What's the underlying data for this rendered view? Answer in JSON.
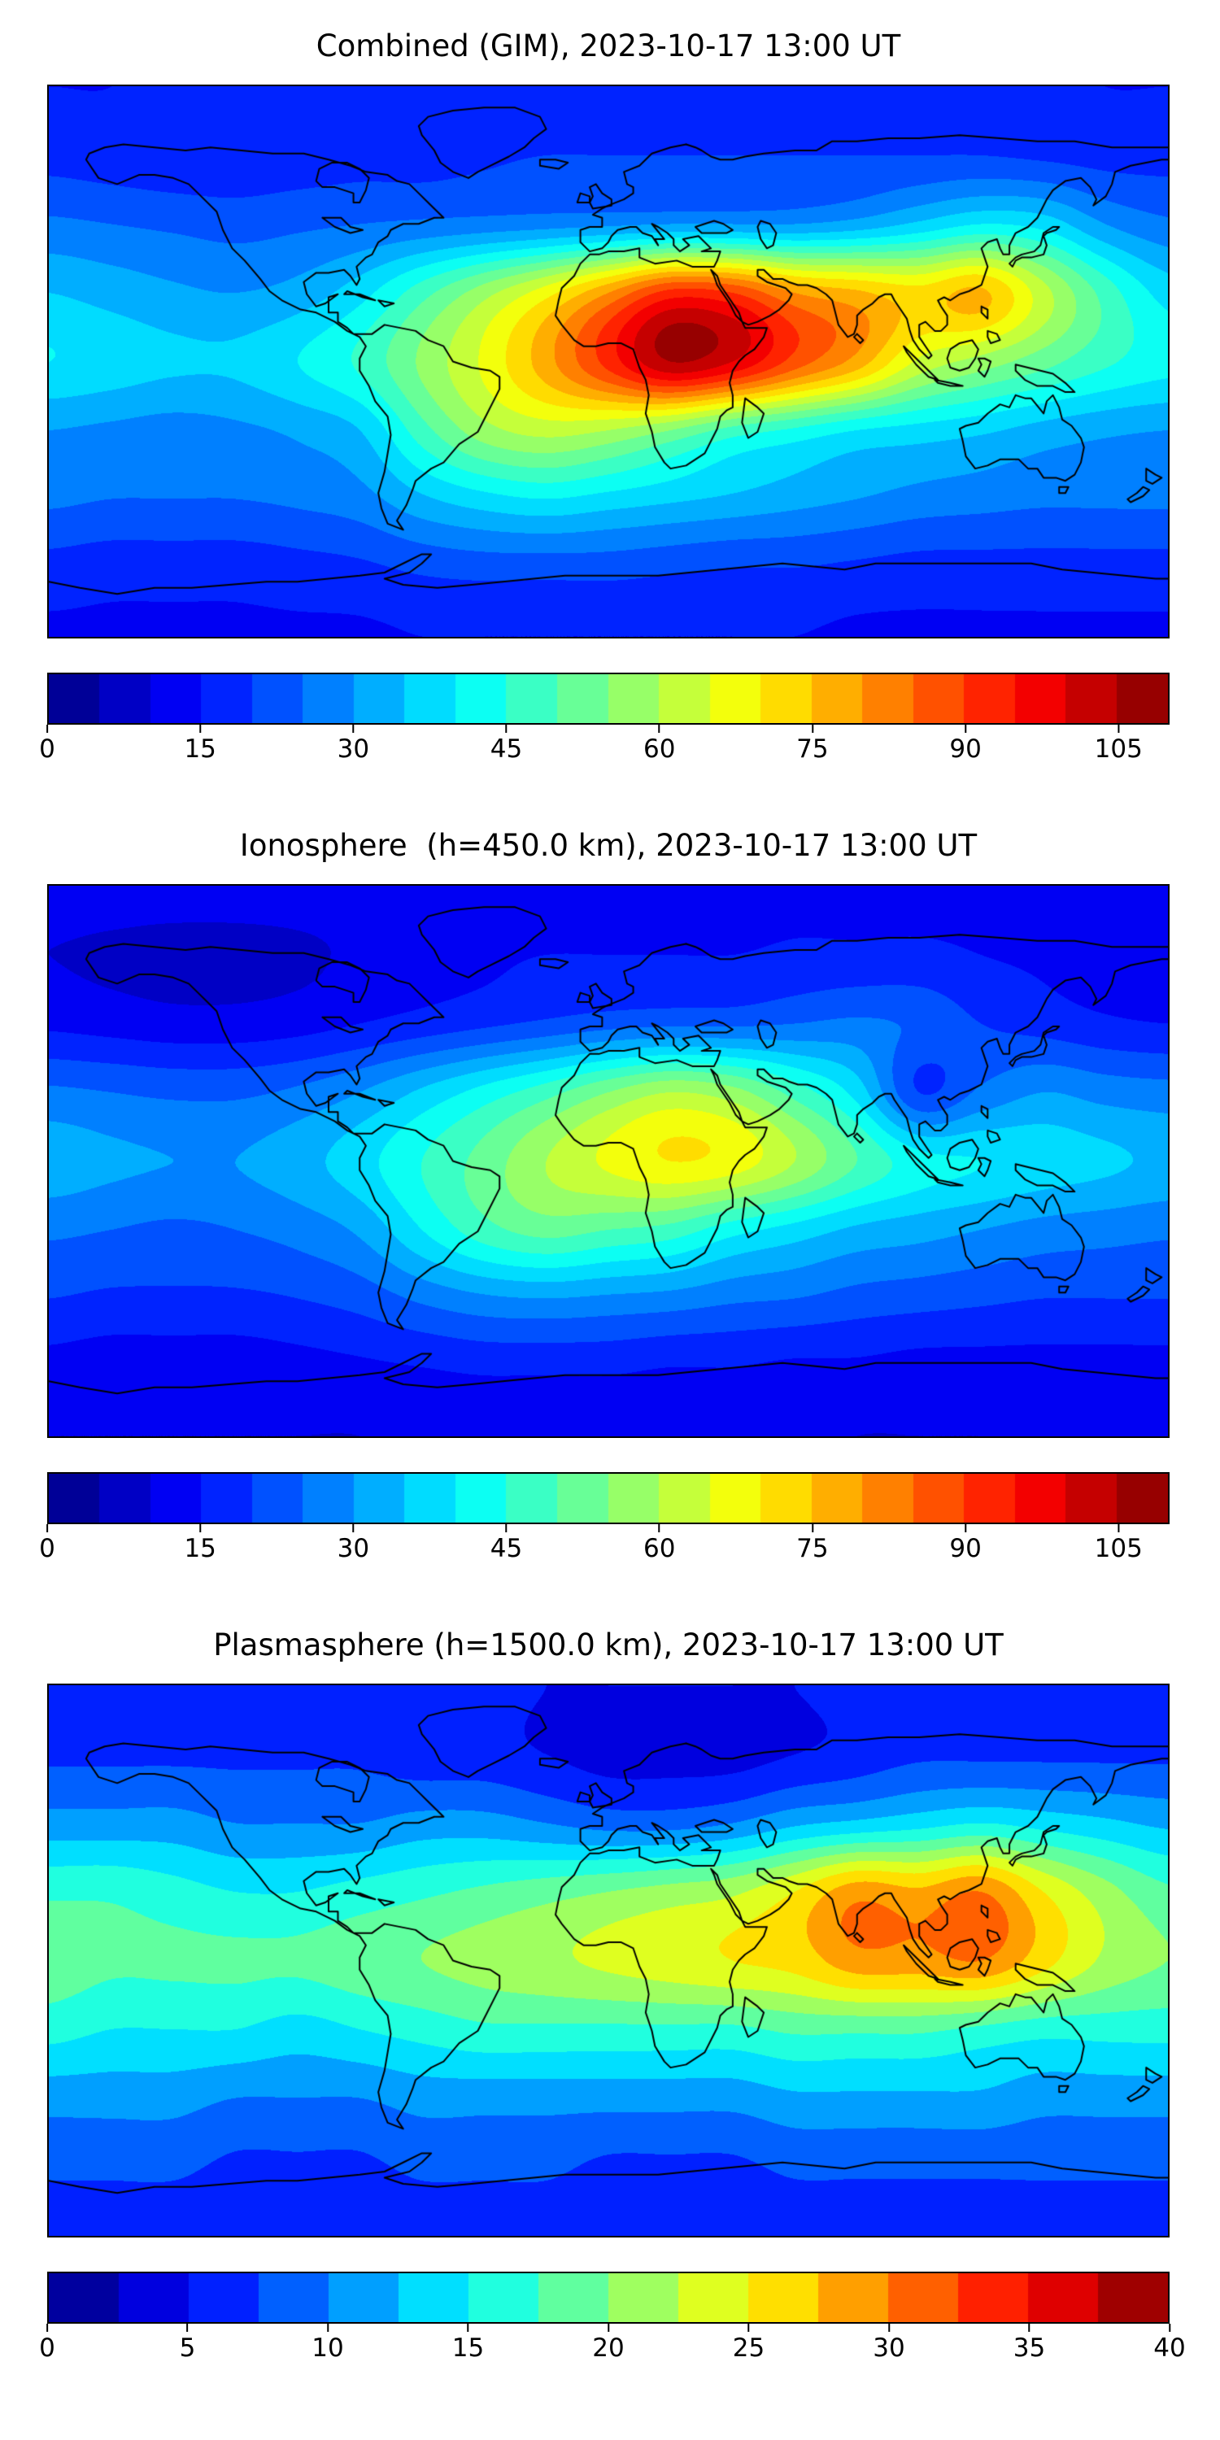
{
  "figure": {
    "background": "#ffffff",
    "text_color": "#000000",
    "colormap": "jet"
  },
  "panels": [
    {
      "title": "Combined (GIM), 2023-10-17 13:00 UT"
    },
    {
      "title": "Ionosphere  (h=450.0 km), 2023-10-17 13:00 UT"
    },
    {
      "title": "Plasmasphere (h=1500.0 km), 2023-10-17 13:00 UT"
    }
  ],
  "chart_data": [
    {
      "type": "heatmap",
      "title": "Combined (GIM), 2023-10-17 13:00 UT",
      "projection": "equirectangular world map with coastlines",
      "xlim": [
        -180,
        180
      ],
      "ylim": [
        -90,
        90
      ],
      "colormap": "jet",
      "levels": {
        "min": 0,
        "max": 110,
        "step": 5
      },
      "colorbar_ticks": [
        0,
        15,
        30,
        45,
        60,
        75,
        90,
        105
      ],
      "lon": [
        -180,
        -160,
        -140,
        -120,
        -100,
        -80,
        -60,
        -40,
        -20,
        0,
        20,
        40,
        60,
        80,
        100,
        120,
        140,
        160,
        180
      ],
      "lat": [
        90,
        67.5,
        45,
        22.5,
        0,
        -22.5,
        -45,
        -67.5,
        -90
      ],
      "values": [
        [
          15,
          15,
          16,
          16,
          17,
          17,
          17,
          16,
          16,
          16,
          16,
          16,
          17,
          17,
          17,
          16,
          16,
          15,
          15
        ],
        [
          18,
          17,
          16,
          16,
          17,
          18,
          18,
          19,
          20,
          20,
          20,
          20,
          20,
          20,
          20,
          20,
          19,
          18,
          18
        ],
        [
          26,
          25,
          24,
          23,
          24,
          25,
          26,
          27,
          28,
          29,
          30,
          30,
          30,
          32,
          36,
          40,
          38,
          30,
          26
        ],
        [
          35,
          33,
          31,
          30,
          32,
          38,
          48,
          58,
          68,
          80,
          92,
          90,
          80,
          76,
          72,
          76,
          62,
          48,
          38
        ],
        [
          40,
          38,
          36,
          36,
          40,
          46,
          56,
          66,
          78,
          92,
          105,
          100,
          88,
          78,
          64,
          58,
          52,
          46,
          42
        ],
        [
          30,
          29,
          28,
          29,
          31,
          35,
          48,
          58,
          62,
          60,
          55,
          48,
          44,
          40,
          38,
          36,
          33,
          31,
          30
        ],
        [
          26,
          25,
          25,
          25,
          26,
          28,
          34,
          38,
          40,
          38,
          36,
          34,
          32,
          30,
          28,
          27,
          26,
          26,
          26
        ],
        [
          18,
          17,
          17,
          17,
          18,
          19,
          21,
          22,
          22,
          22,
          21,
          20,
          20,
          19,
          18,
          18,
          18,
          18,
          18
        ],
        [
          14,
          14,
          14,
          14,
          14,
          14,
          15,
          15,
          15,
          15,
          15,
          15,
          15,
          14,
          14,
          14,
          14,
          14,
          14
        ]
      ]
    },
    {
      "type": "heatmap",
      "title": "Ionosphere  (h=450.0 km), 2023-10-17 13:00 UT",
      "projection": "equirectangular world map with coastlines",
      "xlim": [
        -180,
        180
      ],
      "ylim": [
        -90,
        90
      ],
      "colormap": "jet",
      "levels": {
        "min": 0,
        "max": 110,
        "step": 5
      },
      "colorbar_ticks": [
        0,
        15,
        30,
        45,
        60,
        75,
        90,
        105
      ],
      "lon": [
        -180,
        -160,
        -140,
        -120,
        -100,
        -80,
        -60,
        -40,
        -20,
        0,
        20,
        40,
        60,
        80,
        100,
        120,
        140,
        160,
        180
      ],
      "lat": [
        90,
        67.5,
        45,
        22.5,
        0,
        -22.5,
        -45,
        -67.5,
        -90
      ],
      "values": [
        [
          13,
          13,
          13,
          13,
          13,
          13,
          13,
          13,
          13,
          14,
          14,
          14,
          14,
          14,
          14,
          14,
          13,
          13,
          13
        ],
        [
          10,
          9,
          8,
          8,
          9,
          11,
          13,
          14,
          15,
          15,
          15,
          15,
          16,
          16,
          16,
          15,
          14,
          12,
          11
        ],
        [
          14,
          13,
          12,
          12,
          13,
          15,
          17,
          19,
          21,
          23,
          24,
          24,
          25,
          26,
          24,
          20,
          18,
          16,
          15
        ],
        [
          26,
          25,
          24,
          24,
          26,
          30,
          36,
          42,
          48,
          55,
          60,
          57,
          48,
          38,
          20,
          26,
          30,
          28,
          27
        ],
        [
          33,
          31,
          30,
          30,
          33,
          38,
          45,
          52,
          60,
          66,
          70,
          68,
          60,
          50,
          42,
          40,
          38,
          36,
          34
        ],
        [
          26,
          25,
          24,
          25,
          27,
          31,
          40,
          48,
          52,
          50,
          48,
          42,
          38,
          34,
          32,
          30,
          28,
          27,
          26
        ],
        [
          20,
          19,
          19,
          19,
          20,
          22,
          26,
          29,
          30,
          29,
          28,
          26,
          25,
          23,
          22,
          21,
          20,
          20,
          20
        ],
        [
          13,
          12,
          12,
          12,
          13,
          14,
          15,
          16,
          16,
          16,
          15,
          15,
          14,
          14,
          13,
          13,
          13,
          13,
          13
        ],
        [
          10,
          10,
          10,
          10,
          10,
          10,
          11,
          11,
          11,
          11,
          11,
          11,
          11,
          10,
          10,
          10,
          10,
          10,
          10
        ]
      ]
    },
    {
      "type": "heatmap",
      "title": "Plasmasphere (h=1500.0 km), 2023-10-17 13:00 UT",
      "projection": "equirectangular world map with coastlines",
      "xlim": [
        -180,
        180
      ],
      "ylim": [
        -90,
        90
      ],
      "colormap": "jet",
      "levels": {
        "min": 0,
        "max": 40,
        "step": 2.5
      },
      "colorbar_ticks": [
        0,
        5,
        10,
        15,
        20,
        25,
        30,
        35,
        40
      ],
      "lon": [
        -180,
        -160,
        -140,
        -120,
        -100,
        -80,
        -60,
        -40,
        -20,
        0,
        20,
        40,
        60,
        80,
        100,
        120,
        140,
        160,
        180
      ],
      "lat": [
        90,
        67.5,
        45,
        22.5,
        0,
        -22.5,
        -45,
        -67.5,
        -90
      ],
      "values": [
        [
          6,
          6,
          6,
          6,
          6,
          6,
          6,
          6,
          5,
          5,
          5,
          5,
          5,
          6,
          6,
          6,
          6,
          6,
          6
        ],
        [
          7,
          7,
          7,
          7,
          7,
          7,
          6,
          6,
          5,
          4,
          4,
          4,
          5,
          6,
          7,
          7,
          7,
          7,
          7
        ],
        [
          11,
          11,
          11,
          10,
          10,
          10,
          11,
          11,
          10,
          9,
          9,
          10,
          12,
          13,
          14,
          15,
          14,
          13,
          12
        ],
        [
          17,
          17,
          16,
          15,
          15,
          16,
          17,
          18,
          19,
          20,
          21,
          22,
          25,
          29,
          28,
          30,
          25,
          21,
          18
        ],
        [
          19,
          18,
          18,
          18,
          18,
          19,
          20,
          21,
          22,
          23,
          24,
          25,
          26,
          29,
          29,
          30,
          26,
          22,
          20
        ],
        [
          16,
          15,
          15,
          15,
          14,
          15,
          16,
          17,
          17,
          17,
          17,
          17,
          18,
          18,
          18,
          17,
          16,
          16,
          16
        ],
        [
          11,
          11,
          11,
          10,
          10,
          10,
          11,
          11,
          11,
          11,
          11,
          11,
          12,
          12,
          12,
          12,
          11,
          11,
          11
        ],
        [
          8,
          8,
          8,
          7,
          7,
          7,
          8,
          8,
          8,
          7,
          7,
          7,
          8,
          8,
          8,
          8,
          8,
          8,
          8
        ],
        [
          6,
          6,
          6,
          6,
          6,
          6,
          6,
          6,
          6,
          6,
          6,
          6,
          6,
          6,
          6,
          6,
          6,
          6,
          6
        ]
      ]
    }
  ]
}
